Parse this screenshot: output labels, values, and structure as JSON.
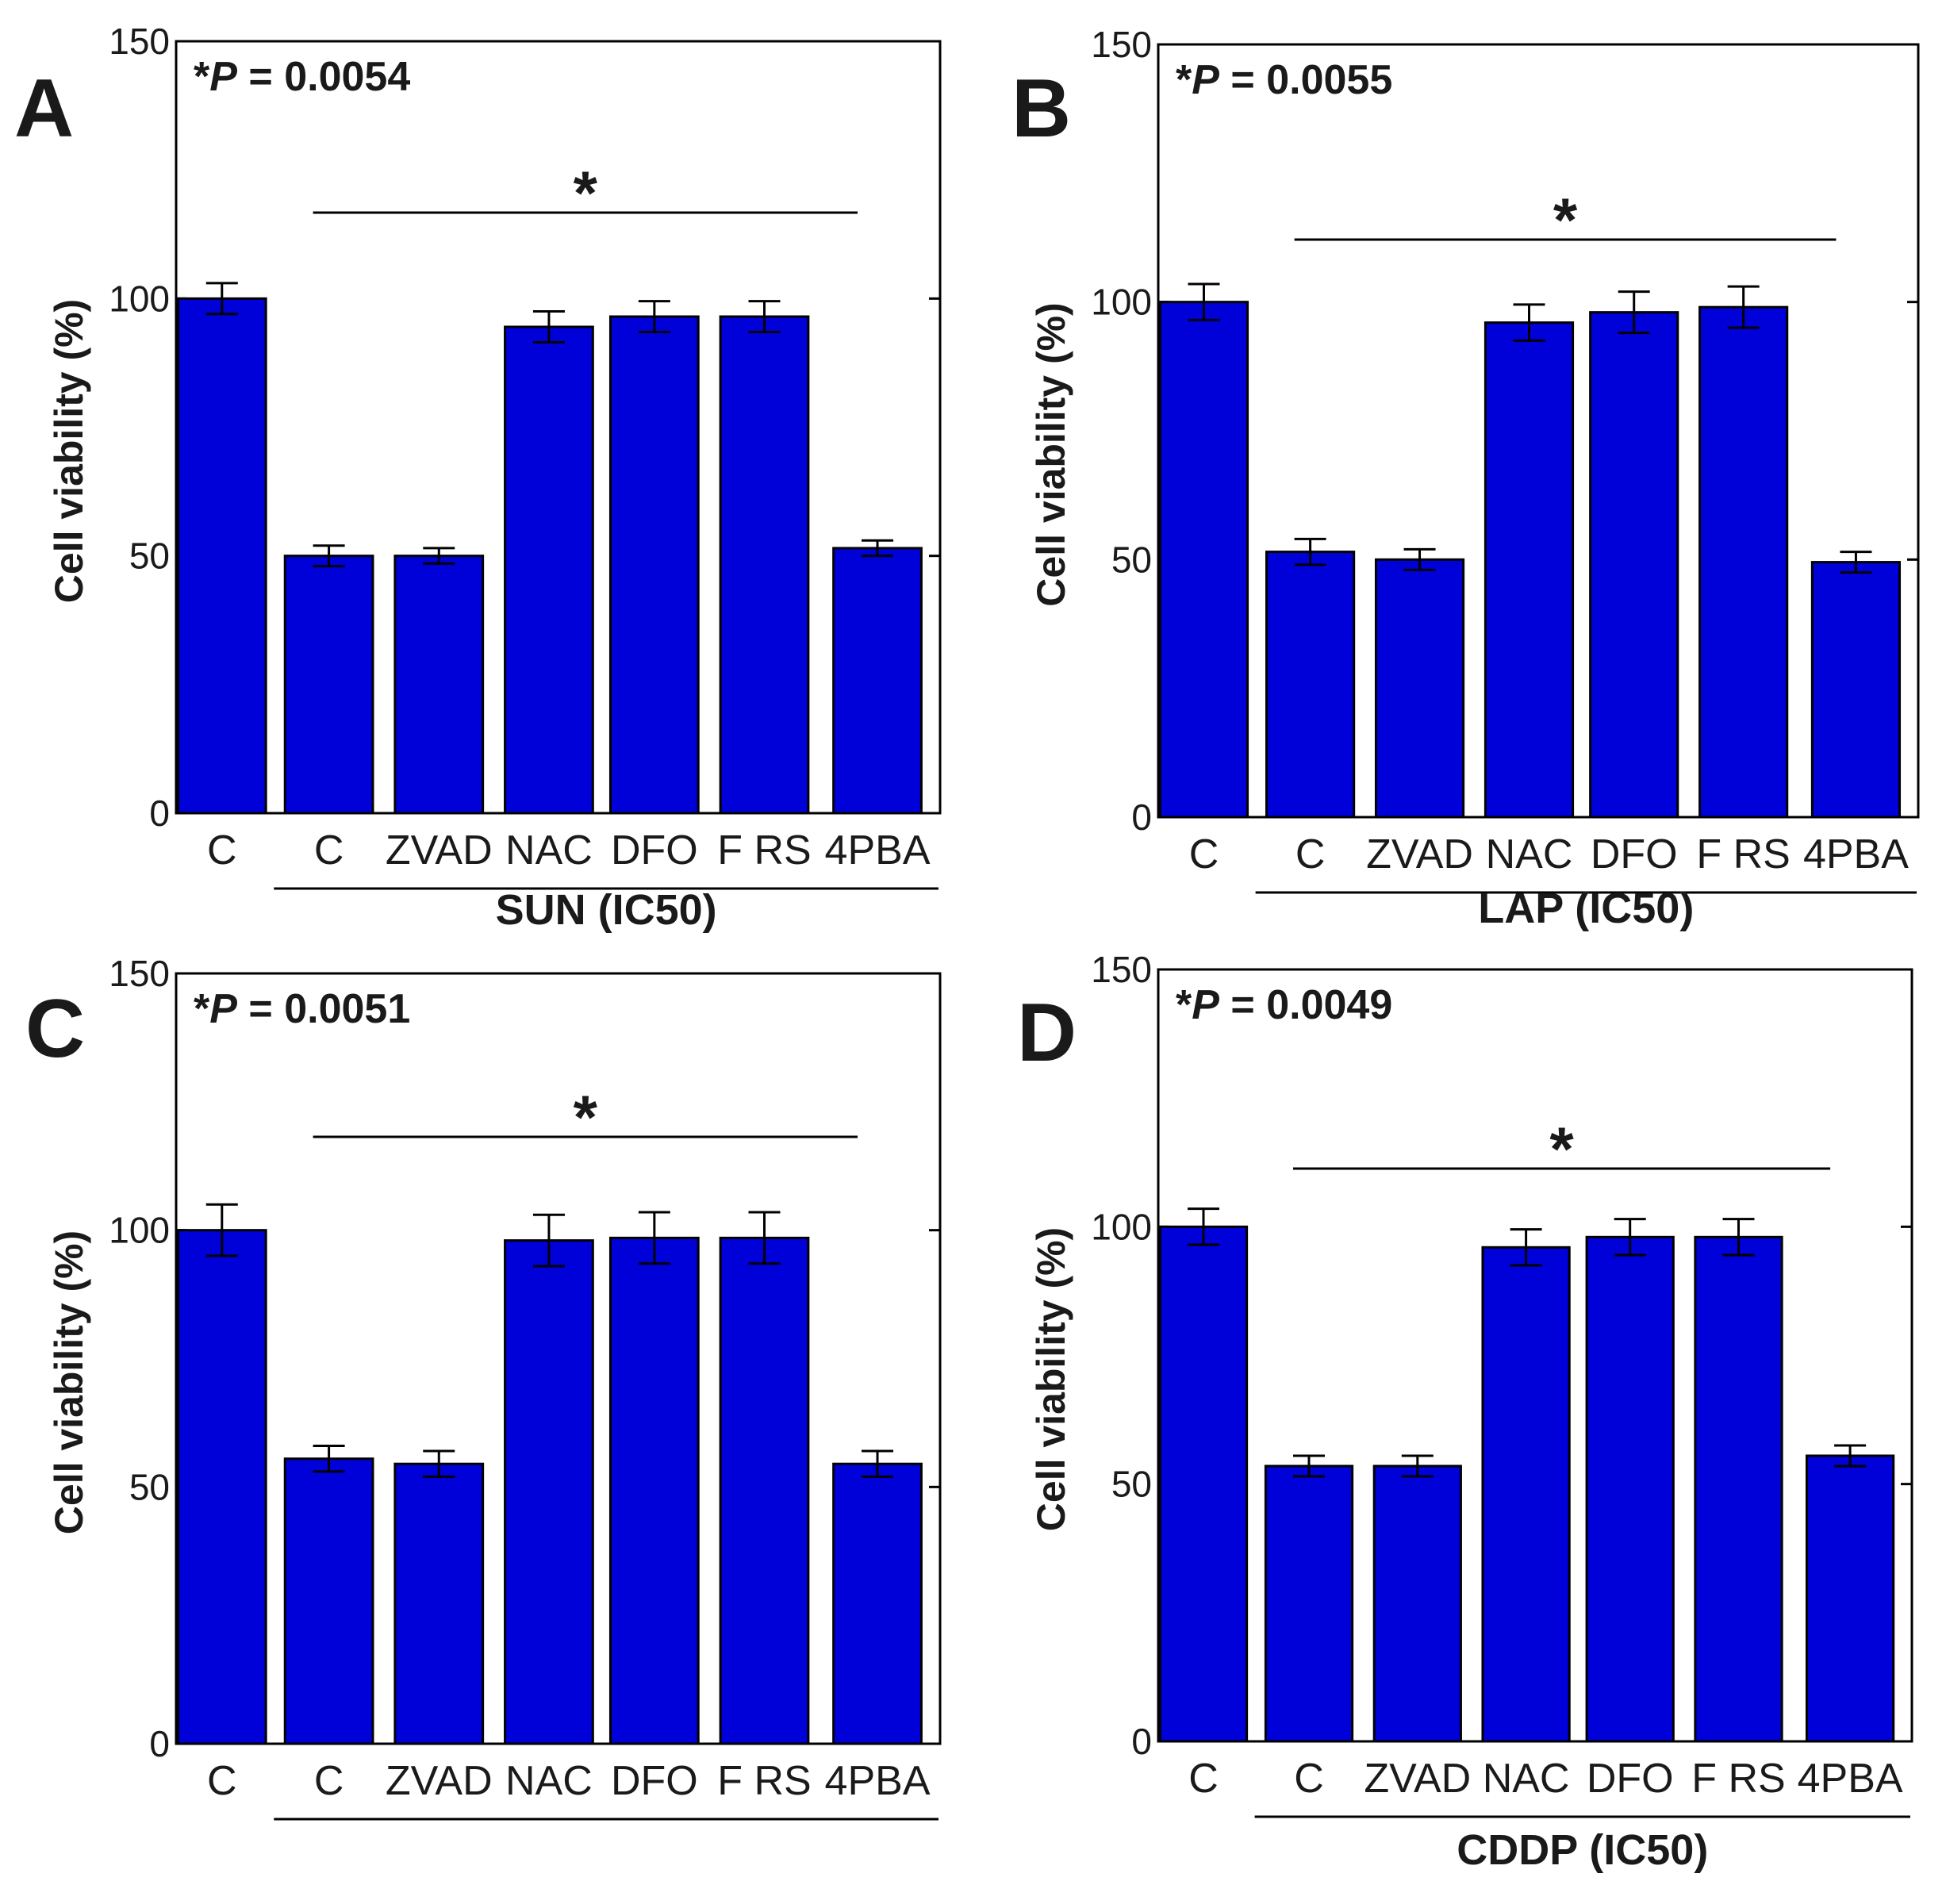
{
  "colors": {
    "bar_fill": "#0000d8",
    "bar_stroke": "#000000",
    "axis": "#000000"
  },
  "chart_data": [
    {
      "type": "bar",
      "panel": "A",
      "pvalue_prefix": "*",
      "pvalue_var": "P",
      "pvalue_text": " = 0.0054",
      "categories": [
        "C",
        "C",
        "ZVAD",
        "NAC",
        "DFO",
        "F RS",
        "4PBA"
      ],
      "values": [
        100,
        50,
        50,
        94.5,
        96.5,
        96.5,
        51.5
      ],
      "errors": [
        3,
        2,
        1.5,
        3,
        3,
        3,
        1.5
      ],
      "ylabel": "Cell viability (%)",
      "ylim": [
        0,
        150
      ],
      "yticks": [
        "0",
        "50",
        "100",
        "150"
      ],
      "group_label": "SUN (IC50)",
      "significance": "*"
    },
    {
      "type": "bar",
      "panel": "B",
      "pvalue_prefix": "*",
      "pvalue_var": "P",
      "pvalue_text": " =  0.0055",
      "categories": [
        "C",
        "C",
        "ZVAD",
        "NAC",
        "DFO",
        "F RS",
        "4PBA"
      ],
      "values": [
        100,
        51.5,
        50,
        96,
        98,
        99,
        49.5
      ],
      "errors": [
        3.5,
        2.5,
        2,
        3.5,
        4,
        4,
        2
      ],
      "ylabel": "Cell viability (%)",
      "ylim": [
        0,
        150
      ],
      "yticks": [
        "0",
        "50",
        "100",
        "150"
      ],
      "group_label": "LAP (IC50)",
      "significance": "*"
    },
    {
      "type": "bar",
      "panel": "C",
      "pvalue_prefix": "*",
      "pvalue_var": "P",
      "pvalue_text": " = 0.0051",
      "categories": [
        "C",
        "C",
        "ZVAD",
        "NAC",
        "DFO",
        "F RS",
        "4PBA"
      ],
      "values": [
        100,
        55.5,
        54.5,
        98,
        98.5,
        98.5,
        54.5
      ],
      "errors": [
        5,
        2.5,
        2.5,
        5,
        5,
        5,
        2.5
      ],
      "ylabel": "Cell viability (%)",
      "ylim": [
        0,
        150
      ],
      "yticks": [
        "0",
        "50",
        "100",
        "150"
      ],
      "group_label": "",
      "significance": "*"
    },
    {
      "type": "bar",
      "panel": "D",
      "pvalue_prefix": "*",
      "pvalue_var": "P",
      "pvalue_text": " = 0.0049",
      "categories": [
        "C",
        "C",
        "ZVAD",
        "NAC",
        "DFO",
        "F RS",
        "4PBA"
      ],
      "values": [
        100,
        53.5,
        53.5,
        96,
        98,
        98,
        55.5
      ],
      "errors": [
        3.5,
        2,
        2,
        3.5,
        3.5,
        3.5,
        2
      ],
      "ylabel": "Cell viability (%)",
      "ylim": [
        0,
        150
      ],
      "yticks": [
        "0",
        "50",
        "100",
        "150"
      ],
      "group_label": "CDDP (IC50)",
      "significance": "*"
    }
  ]
}
